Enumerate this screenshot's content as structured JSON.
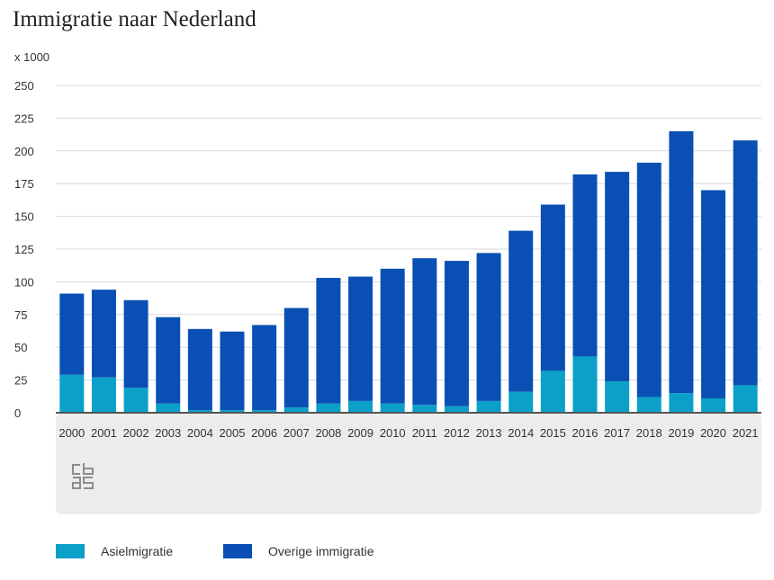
{
  "title": "Immigratie naar Nederland",
  "unit_label": "x 1000",
  "colors": {
    "asiel": "#0aa0c8",
    "overige": "#0a50b4",
    "grid": "#d9d9d9",
    "xaxis_band": "#ececec"
  },
  "legend": [
    {
      "label": "Asielmigratie",
      "color": "#0aa0c8"
    },
    {
      "label": "Overige immigratie",
      "color": "#0a50b4"
    }
  ],
  "logo": "cbs",
  "chart_data": {
    "type": "bar",
    "stacked": true,
    "title": "Immigratie naar Nederland",
    "ylabel": "x 1000",
    "xlabel": "",
    "ylim": [
      0,
      250
    ],
    "yticks": [
      0,
      25,
      50,
      75,
      100,
      125,
      150,
      175,
      200,
      225,
      250
    ],
    "grid": true,
    "legend_position": "bottom",
    "categories": [
      "2000",
      "2001",
      "2002",
      "2003",
      "2004",
      "2005",
      "2006",
      "2007",
      "2008",
      "2009",
      "2010",
      "2011",
      "2012",
      "2013",
      "2014",
      "2015",
      "2016",
      "2017",
      "2018",
      "2019",
      "2020",
      "2021"
    ],
    "series": [
      {
        "name": "Asielmigratie",
        "color": "#0aa0c8",
        "values": [
          29,
          27,
          19,
          7,
          2,
          2,
          2,
          4,
          7,
          9,
          7,
          6,
          5,
          9,
          16,
          32,
          43,
          24,
          12,
          15,
          11,
          21
        ]
      },
      {
        "name": "Overige immigratie",
        "color": "#0a50b4",
        "values": [
          62,
          67,
          67,
          66,
          62,
          60,
          65,
          76,
          96,
          95,
          103,
          112,
          111,
          113,
          123,
          127,
          139,
          160,
          179,
          200,
          159,
          187
        ]
      }
    ]
  }
}
